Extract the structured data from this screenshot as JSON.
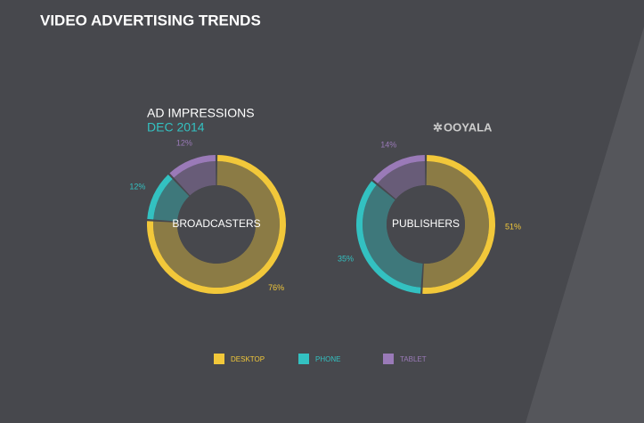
{
  "title": "VIDEO ADVERTISING TRENDS",
  "subtitle": "AD IMPRESSIONS",
  "date": "DEC 2014",
  "logo": "OOYALA",
  "legend": [
    {
      "name": "DESKTOP",
      "color": "#f2c83a"
    },
    {
      "name": "PHONE",
      "color": "#33c1c1"
    },
    {
      "name": "TABLET",
      "color": "#9a7ab8"
    }
  ],
  "chart_data": [
    {
      "type": "pie",
      "center_label": "BROADCASTERS",
      "values": [
        76,
        12,
        12
      ],
      "value_labels": [
        "76%",
        "12%",
        "12%"
      ]
    },
    {
      "type": "pie",
      "center_label": "PUBLISHERS",
      "values": [
        51,
        35,
        14
      ],
      "value_labels": [
        "51%",
        "35%",
        "14%"
      ]
    }
  ]
}
